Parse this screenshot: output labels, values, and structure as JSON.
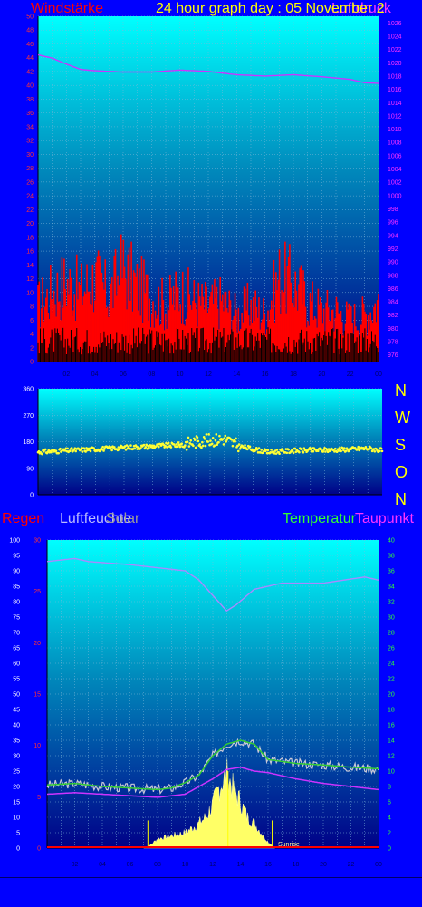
{
  "header": {
    "wind_label": "Windstärke",
    "title": "24 hour graph day : 05 November 2",
    "pressure_label": "Luftdruck"
  },
  "direction_letters": [
    "N",
    "W",
    "S",
    "O",
    "N"
  ],
  "bottom_labels": {
    "rain": "Regen",
    "humidity": "Luftfeuchte",
    "solar": "Solar",
    "temperature": "Temperatur",
    "dewpoint": "Taupunkt",
    "sunrise": "Sunrise"
  },
  "colors": {
    "background": "#0000ff",
    "wind": "#ff0000",
    "gust_base": "#000000",
    "pressure": "#cc33ff",
    "direction": "#ffff33",
    "humidity": "#aa88ff",
    "temperature": "#33cc33",
    "dewpoint": "#cc33ff",
    "solar": "#ffff66",
    "rain": "#ff0000"
  },
  "chart_data": [
    {
      "type": "line",
      "name": "wind-pressure",
      "x_ticks": [
        "02",
        "04",
        "06",
        "08",
        "10",
        "12",
        "14",
        "16",
        "18",
        "20",
        "22",
        "00"
      ],
      "y_left_ticks": [
        "0",
        "2",
        "4",
        "6",
        "8",
        "10",
        "12",
        "14",
        "16",
        "18",
        "20",
        "22",
        "24",
        "26",
        "28",
        "30",
        "32",
        "34",
        "36",
        "38",
        "40",
        "42",
        "44",
        "46",
        "48",
        "50"
      ],
      "y_left_range": [
        0,
        50
      ],
      "y_right_ticks": [
        "976",
        "978",
        "980",
        "982",
        "984",
        "986",
        "988",
        "990",
        "992",
        "994",
        "996",
        "998",
        "1000",
        "1002",
        "1004",
        "1006",
        "1008",
        "1010",
        "1012",
        "1014",
        "1016",
        "1018",
        "1020",
        "1022",
        "1024",
        "1026"
      ],
      "y_right_range": [
        975,
        1027
      ],
      "series": [
        {
          "name": "Luftdruck",
          "axis": "right",
          "x": [
            0,
            1,
            2,
            3,
            4,
            6,
            8,
            10,
            12,
            14,
            16,
            18,
            20,
            22,
            23,
            24
          ],
          "values": [
            1021.2,
            1020.7,
            1019.8,
            1019.0,
            1018.8,
            1018.6,
            1018.6,
            1018.9,
            1018.7,
            1018.2,
            1018.0,
            1018.2,
            1017.9,
            1017.5,
            1017.0,
            1016.9
          ]
        },
        {
          "name": "Windstärke",
          "axis": "left",
          "x": [
            0,
            1,
            2,
            3,
            4,
            5,
            6,
            7,
            8,
            9,
            10,
            11,
            12,
            13,
            14,
            15,
            16,
            17,
            18,
            19,
            20,
            21,
            22,
            23,
            24
          ],
          "values": [
            12,
            15,
            17,
            15,
            18,
            14,
            20,
            16,
            14,
            12,
            15,
            13,
            12,
            13,
            10,
            12,
            10,
            18,
            17,
            13,
            11,
            11,
            9,
            10,
            13
          ]
        }
      ]
    },
    {
      "type": "scatter",
      "name": "wind-direction",
      "x_ticks": [
        "02",
        "04",
        "06",
        "08",
        "10",
        "12",
        "14",
        "16",
        "18",
        "20",
        "22",
        "00"
      ],
      "y_ticks": [
        "0",
        "90",
        "180",
        "270",
        "360"
      ],
      "y_range": [
        0,
        360
      ],
      "series": [
        {
          "name": "direction",
          "x": [
            0,
            2,
            4,
            6,
            8,
            10,
            11,
            12,
            13,
            14,
            16,
            18,
            20,
            22,
            23,
            24
          ],
          "values": [
            145,
            150,
            155,
            160,
            165,
            170,
            180,
            185,
            190,
            165,
            145,
            150,
            152,
            155,
            158,
            150
          ]
        }
      ]
    },
    {
      "type": "line",
      "name": "temperature-humidity-solar",
      "x_ticks": [
        "02",
        "04",
        "06",
        "08",
        "10",
        "12",
        "14",
        "16",
        "18",
        "20",
        "22",
        "00"
      ],
      "y_left_ticks": [
        "0",
        "5",
        "10",
        "15",
        "20",
        "25",
        "30",
        "35",
        "40",
        "45",
        "50",
        "55",
        "60",
        "65",
        "70",
        "75",
        "80",
        "85",
        "90",
        "95",
        "100"
      ],
      "y_left_range": [
        0,
        100
      ],
      "y_rain_ticks": [
        "0",
        "5",
        "10",
        "15",
        "20",
        "25",
        "30"
      ],
      "y_rain_range": [
        0,
        30
      ],
      "y_right_ticks": [
        "0",
        "2",
        "4",
        "6",
        "8",
        "10",
        "12",
        "14",
        "16",
        "18",
        "20",
        "22",
        "24",
        "26",
        "28",
        "30",
        "32",
        "34",
        "36",
        "38",
        "40"
      ],
      "y_right_range": [
        0,
        40
      ],
      "series": [
        {
          "name": "Luftfeuchte",
          "axis": "left",
          "x": [
            0,
            2,
            3,
            6,
            8,
            10,
            11,
            12,
            13,
            13.7,
            15,
            17,
            20,
            23,
            24
          ],
          "values": [
            93,
            94,
            93,
            92,
            91,
            90,
            87,
            82,
            77,
            79,
            84,
            86,
            86,
            88,
            87
          ]
        },
        {
          "name": "Temperatur",
          "axis": "right",
          "x": [
            0,
            2,
            4,
            6,
            8,
            9,
            10,
            11,
            12,
            13,
            14,
            15,
            16,
            18,
            20,
            22,
            24
          ],
          "values": [
            8.2,
            8.4,
            8.0,
            7.8,
            7.6,
            7.8,
            8.5,
            9.5,
            12.0,
            13.5,
            14.0,
            13.5,
            11.5,
            11.0,
            10.8,
            10.5,
            10.3
          ]
        },
        {
          "name": "Taupunkt",
          "axis": "right",
          "x": [
            0,
            2,
            4,
            6,
            8,
            10,
            12,
            13,
            14,
            15,
            16,
            18,
            20,
            22,
            24
          ],
          "values": [
            7.0,
            7.2,
            7.0,
            6.8,
            6.6,
            7.0,
            9.0,
            10.2,
            10.5,
            10.0,
            9.8,
            9.0,
            8.4,
            8.0,
            7.6
          ]
        },
        {
          "name": "Solar",
          "axis": "left",
          "type": "area",
          "x": [
            7.0,
            7.5,
            8,
            9,
            10,
            11,
            11.5,
            12,
            12.5,
            13,
            13.5,
            14,
            14.5,
            15,
            15.5,
            16,
            16.5
          ],
          "values": [
            0,
            1,
            3,
            4,
            5,
            8,
            10,
            14,
            20,
            24,
            19,
            15,
            10,
            8,
            5,
            2,
            0
          ]
        },
        {
          "name": "Regen",
          "axis": "rain",
          "x": [
            0,
            24
          ],
          "values": [
            0,
            0
          ]
        }
      ]
    }
  ]
}
